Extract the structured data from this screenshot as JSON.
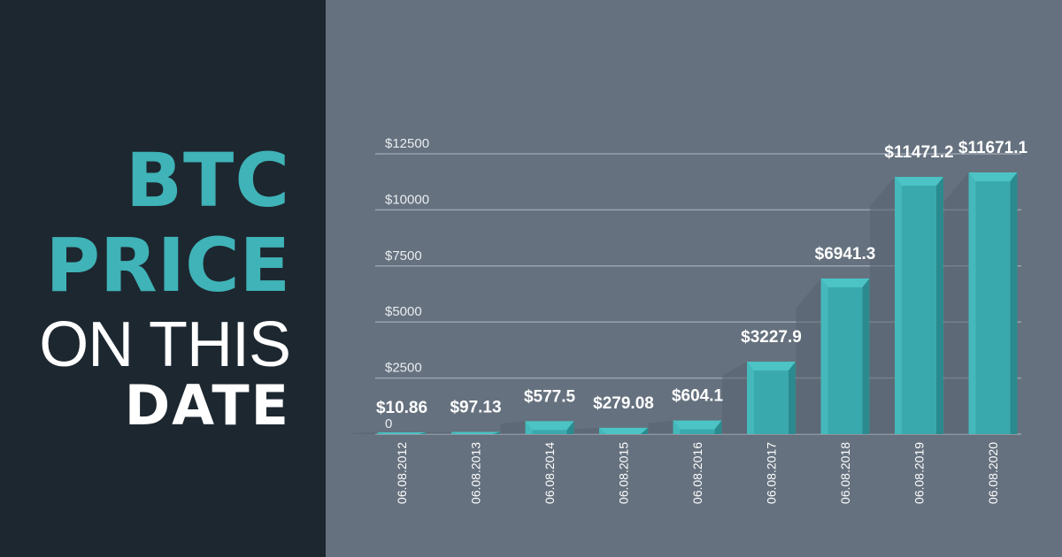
{
  "headline": {
    "line1": "BTC",
    "line2": "PRICE",
    "line3": "ON THIS",
    "line4": "DATE"
  },
  "colors": {
    "left_panel": "#1d2730",
    "chart_background": "#65717e",
    "accent": "#3fb3b7",
    "bar_front": "#3aa9ad",
    "bar_top": "#4cc3c4",
    "bar_side": "#2b8a8e",
    "shadow": "#586370",
    "gridline": "#9aa3ad"
  },
  "chart_data": {
    "type": "bar",
    "style": "3d-columns",
    "categories": [
      "06.08.2012",
      "06.08.2013",
      "06.08.2014",
      "06.08.2015",
      "06.08.2016",
      "06.08.2017",
      "06.08.2018",
      "06.08.2019",
      "06.08.2020"
    ],
    "values": [
      10.86,
      97.13,
      577.5,
      279.08,
      604.1,
      3227.9,
      6941.3,
      11471.2,
      11671.1
    ],
    "data_labels": [
      "$10.86",
      "$97.13",
      "$577.5",
      "$279.08",
      "$604.1",
      "$3227.9",
      "$6941.3",
      "$11471.2",
      "$11671.1"
    ],
    "y_ticks": [
      0,
      2500,
      5000,
      7500,
      10000,
      12500
    ],
    "y_tick_labels": [
      "0",
      "$2500",
      "$5000",
      "$7500",
      "$10000",
      "$12500"
    ],
    "ylim": [
      0,
      12500
    ],
    "title": "BTC PRICE ON THIS DATE",
    "xlabel": "",
    "ylabel": "",
    "grid": true,
    "legend": "none"
  }
}
